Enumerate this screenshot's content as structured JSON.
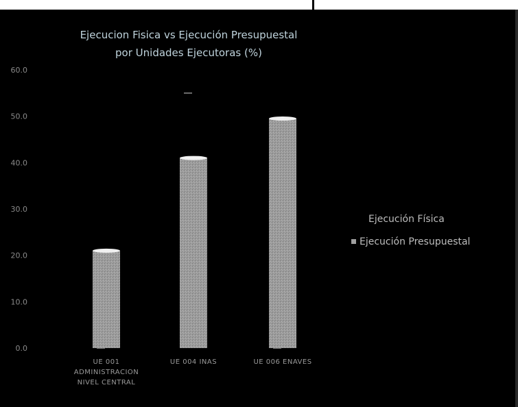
{
  "chart_data": {
    "type": "bar",
    "title_line1": "Ejecucion Fisica vs Ejecución Presupuestal",
    "title_line2": "por Unidades Ejecutoras (%)",
    "categories": [
      "UE 001 ADMINISTRACION NIVEL CENTRAL",
      "UE 004 INAS",
      "UE 006 ENAVES"
    ],
    "category_label_lines": [
      [
        "UE 001",
        "ADMINISTRACION",
        "NIVEL CENTRAL"
      ],
      [
        "UE 004 INAS"
      ],
      [
        "UE 006 ENAVES"
      ]
    ],
    "series": [
      {
        "name": "Ejecución Física",
        "values": [
          0,
          55,
          0
        ],
        "color": "#6f6f6f"
      },
      {
        "name": "Ejecución Presupuestal",
        "values": [
          21,
          41,
          49.5
        ],
        "color": "#9a9a9a"
      }
    ],
    "ylim": [
      0,
      60
    ],
    "yticks": [
      "0.0",
      "10.0",
      "20.0",
      "30.0",
      "40.0",
      "50.0",
      "60.0"
    ],
    "legend": [
      "Ejecución Física",
      "Ejecución Presupuestal"
    ],
    "legend_position": "right",
    "grid": false
  }
}
